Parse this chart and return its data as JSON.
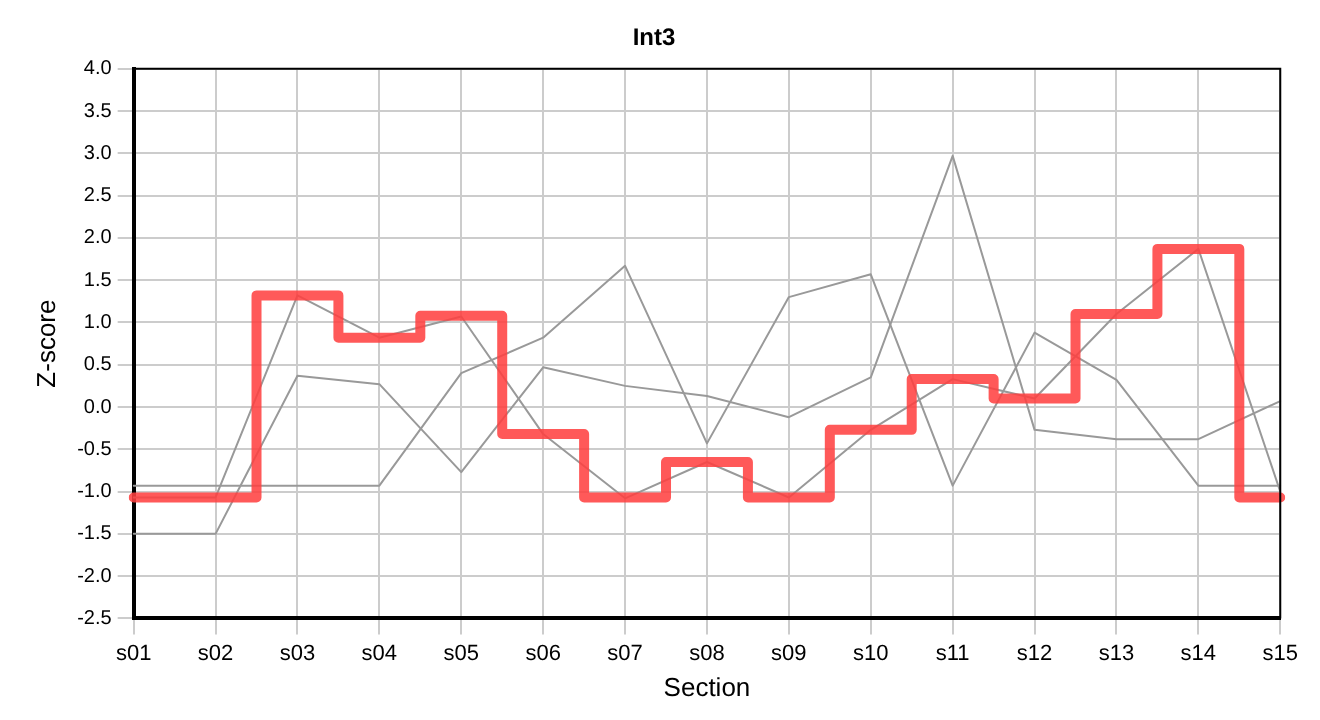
{
  "chart_data": {
    "type": "line",
    "title": "Int3",
    "xlabel": "Section",
    "ylabel": "Z-score",
    "categories": [
      "s01",
      "s02",
      "s03",
      "s04",
      "s05",
      "s06",
      "s07",
      "s08",
      "s09",
      "s10",
      "s11",
      "s12",
      "s13",
      "s14",
      "s15"
    ],
    "series": [
      {
        "color": "#999999",
        "values": [
          -1.5,
          -1.5,
          0.37,
          0.27,
          -0.77,
          0.47,
          0.25,
          0.13,
          -0.12,
          0.35,
          2.97,
          -0.27,
          -0.38,
          -0.38,
          0.07
        ]
      },
      {
        "color": "#999999",
        "values": [
          -0.93,
          -0.93,
          -0.93,
          -0.93,
          0.4,
          0.82,
          1.67,
          -0.43,
          1.3,
          1.57,
          -0.93,
          0.88,
          0.32,
          -0.93,
          -0.93
        ]
      },
      {
        "color": "#999999",
        "values": [
          -1.07,
          -1.07,
          1.32,
          0.82,
          1.07,
          -0.32,
          -1.08,
          -0.65,
          -1.07,
          -0.27,
          0.33,
          0.1,
          1.1,
          1.87,
          -1.0
        ]
      },
      {
        "type": "step",
        "color": "#ff4040",
        "values": [
          -1.07,
          -1.07,
          1.32,
          0.82,
          1.08,
          -0.32,
          -1.07,
          -0.65,
          -1.07,
          -0.27,
          0.33,
          0.1,
          1.1,
          1.87,
          -1.07
        ]
      }
    ],
    "ylim": [
      -2.5,
      4.0
    ],
    "yticks": [
      {
        "value": -2.5,
        "label": "-2.5"
      },
      {
        "value": -2,
        "label": "-2.0"
      },
      {
        "value": -1.5,
        "label": "-1.5"
      },
      {
        "value": -1,
        "label": "-1.0"
      },
      {
        "value": -0.5,
        "label": "-0.5"
      },
      {
        "value": 0,
        "label": "0.0"
      },
      {
        "value": 0.5,
        "label": "0.5"
      },
      {
        "value": 1,
        "label": "1.0"
      },
      {
        "value": 1.5,
        "label": "1.5"
      },
      {
        "value": 2,
        "label": "2.0"
      },
      {
        "value": 2.5,
        "label": "2.5"
      },
      {
        "value": 3,
        "label": "3.0"
      },
      {
        "value": 3.5,
        "label": "3.5"
      },
      {
        "value": 4,
        "label": "4.0"
      }
    ],
    "grid": true,
    "marker": "none",
    "line_style": "solid",
    "legend": false
  }
}
